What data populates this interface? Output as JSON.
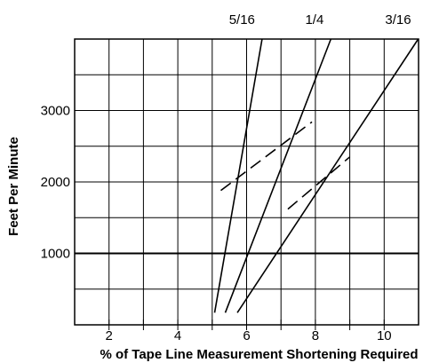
{
  "chart_data": {
    "type": "line",
    "title": "",
    "xlabel": "% of Tape Line Measurement Shortening Required",
    "ylabel": "Feet Per Minute",
    "xlim": [
      1,
      11
    ],
    "ylim": [
      0,
      4000
    ],
    "x_ticks": [
      2,
      4,
      6,
      8,
      10
    ],
    "x_minor_ticks": [
      3,
      5,
      7,
      9
    ],
    "y_ticks": [
      1000,
      2000,
      3000
    ],
    "grid": true,
    "series": [
      {
        "name": "5/16",
        "style": "solid",
        "points": [
          [
            5.07,
            170
          ],
          [
            6.45,
            4000
          ]
        ]
      },
      {
        "name": "1/4",
        "style": "solid",
        "points": [
          [
            5.38,
            170
          ],
          [
            8.45,
            4000
          ]
        ]
      },
      {
        "name": "3/16",
        "style": "solid",
        "points": [
          [
            5.73,
            170
          ],
          [
            10.99,
            4000
          ]
        ]
      },
      {
        "name": "",
        "style": "dashed",
        "points": [
          [
            5.25,
            1880
          ],
          [
            7.9,
            2840
          ]
        ]
      },
      {
        "name": "",
        "style": "dashed",
        "points": [
          [
            7.2,
            1620
          ],
          [
            9.0,
            2350
          ]
        ]
      }
    ],
    "series_labels": [
      "5/16",
      "1/4",
      "3/16"
    ]
  }
}
